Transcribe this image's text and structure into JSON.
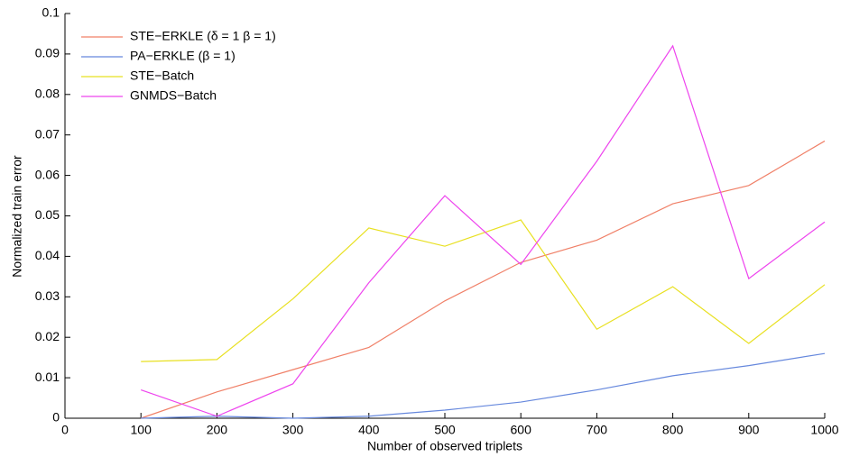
{
  "chart_data": {
    "type": "line",
    "xlabel": "Number of observed triplets",
    "ylabel": "Normalized train error",
    "x": [
      100,
      200,
      300,
      400,
      500,
      600,
      700,
      800,
      900,
      1000
    ],
    "xlim": [
      0,
      1000
    ],
    "xticks": [
      0,
      100,
      200,
      300,
      400,
      500,
      600,
      700,
      800,
      900,
      1000
    ],
    "ylim": [
      0,
      0.1
    ],
    "yticks": [
      0,
      0.01,
      0.02,
      0.03,
      0.04,
      0.05,
      0.06,
      0.07,
      0.08,
      0.09,
      0.1
    ],
    "legend": "upper left",
    "series": [
      {
        "name": "STE−ERKLE (δ = 1 β = 1)",
        "color": "#f08068",
        "values": [
          0.0,
          0.0065,
          0.012,
          0.0175,
          0.029,
          0.0385,
          0.044,
          0.053,
          0.0575,
          0.0685
        ]
      },
      {
        "name": "PA−ERKLE (β = 1)",
        "color": "#6688dd",
        "values": [
          0.0,
          0.0005,
          0.0,
          0.0005,
          0.002,
          0.004,
          0.007,
          0.0105,
          0.013,
          0.016
        ]
      },
      {
        "name": "STE−Batch",
        "color": "#e8e020",
        "values": [
          0.014,
          0.0145,
          0.0295,
          0.047,
          0.0425,
          0.049,
          0.022,
          0.0325,
          0.0185,
          0.033
        ]
      },
      {
        "name": "GNMDS−Batch",
        "color": "#ee44ee",
        "values": [
          0.007,
          0.0005,
          0.0085,
          0.0335,
          0.055,
          0.038,
          0.0635,
          0.092,
          0.0345,
          0.0485
        ]
      }
    ]
  }
}
